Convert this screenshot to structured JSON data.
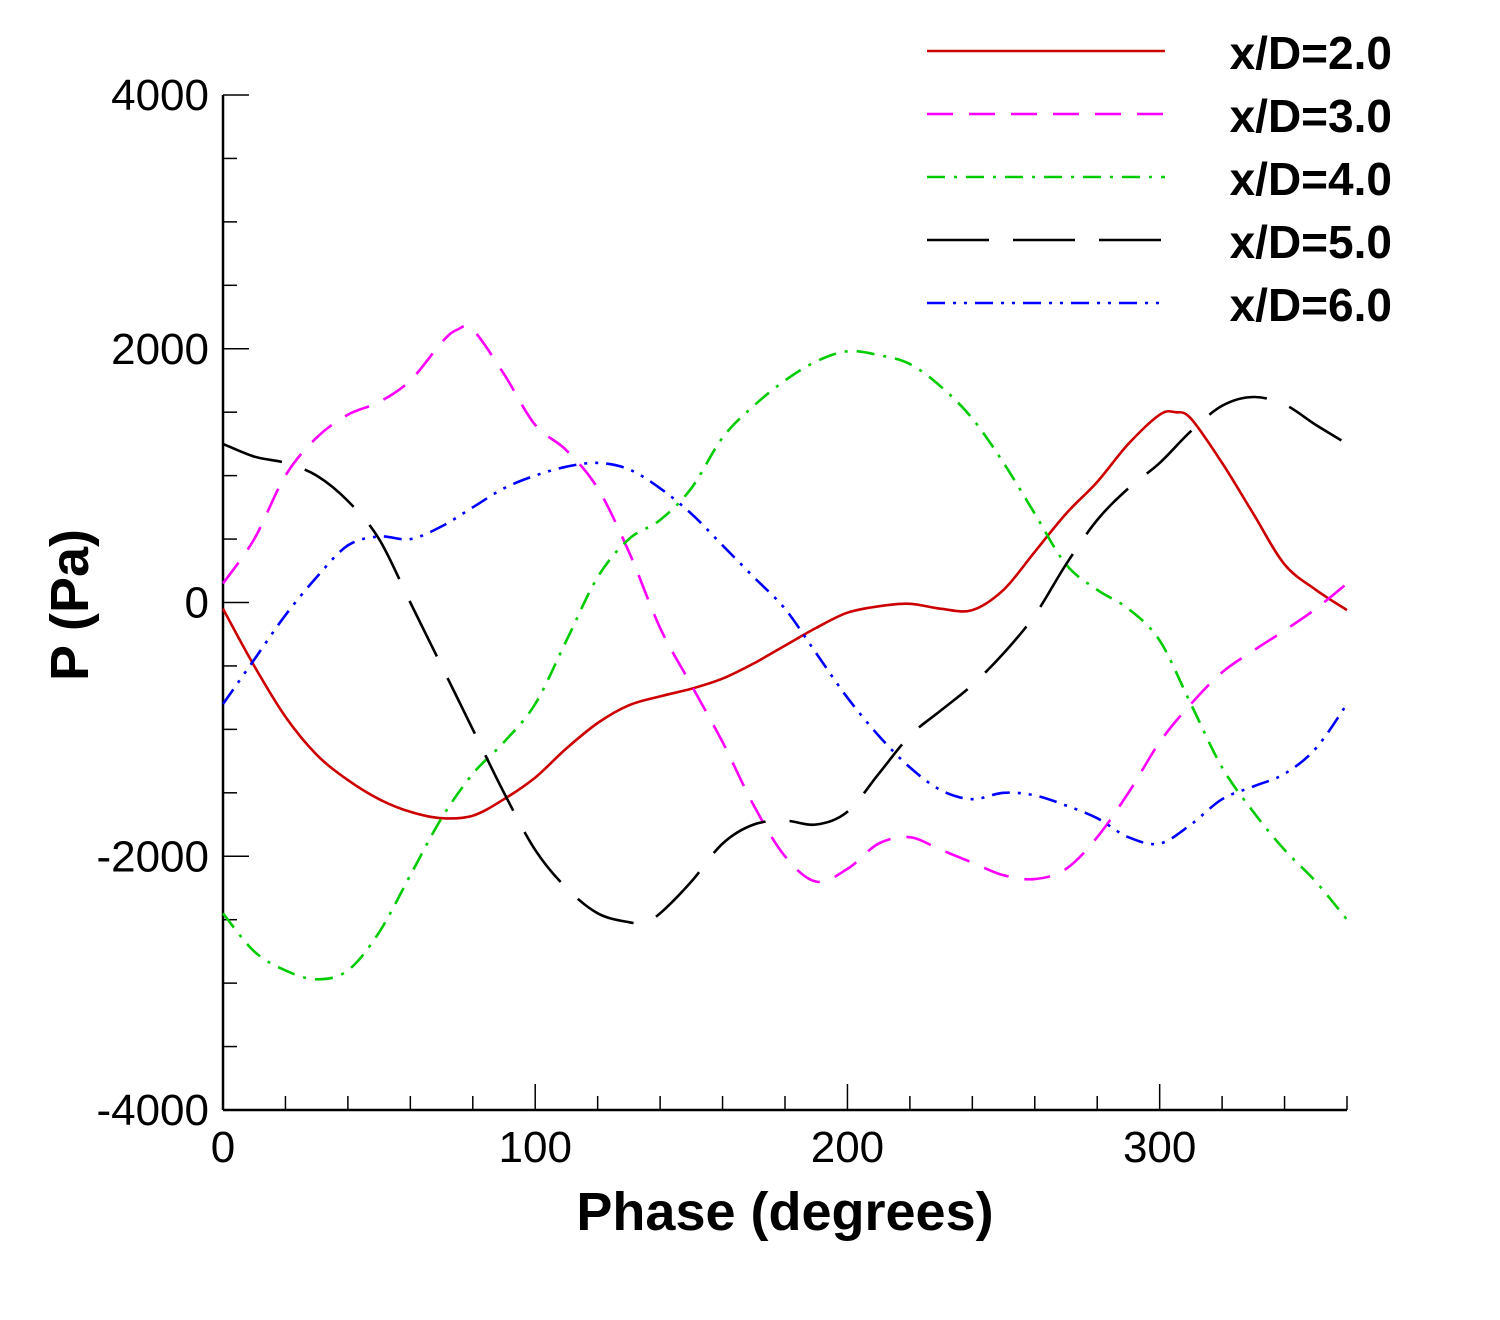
{
  "chart_data": {
    "type": "line",
    "title": "",
    "xlabel": "Phase (degrees)",
    "ylabel": "P (Pa)",
    "xlim": [
      0,
      360
    ],
    "ylim": [
      -4000,
      4000
    ],
    "x_ticks": [
      0,
      100,
      200,
      300
    ],
    "x_tick_labels": [
      "0",
      "100",
      "200",
      "300"
    ],
    "y_ticks": [
      -4000,
      -2000,
      0,
      2000,
      4000
    ],
    "y_tick_labels": [
      "-4000",
      "-2000",
      "0",
      "2000",
      "4000"
    ],
    "grid": false,
    "legend_position": "top-right",
    "series": [
      {
        "name": "x/D=2.0",
        "color": "#cc0000",
        "dash": "solid",
        "x": [
          0,
          10,
          20,
          30,
          40,
          50,
          60,
          70,
          80,
          90,
          100,
          110,
          120,
          130,
          140,
          150,
          160,
          170,
          180,
          190,
          200,
          210,
          220,
          230,
          240,
          250,
          260,
          270,
          280,
          290,
          300,
          305,
          310,
          320,
          330,
          340,
          350,
          360
        ],
        "y": [
          -50,
          -500,
          -900,
          -1200,
          -1400,
          -1550,
          -1650,
          -1700,
          -1680,
          -1550,
          -1380,
          -1150,
          -950,
          -810,
          -740,
          -680,
          -600,
          -480,
          -340,
          -200,
          -80,
          -30,
          -10,
          -50,
          -60,
          100,
          400,
          700,
          950,
          1250,
          1480,
          1500,
          1450,
          1100,
          700,
          300,
          100,
          -60
        ]
      },
      {
        "name": "x/D=3.0",
        "color": "#ff00ff",
        "dash": "dashed",
        "x": [
          0,
          10,
          20,
          30,
          40,
          50,
          60,
          70,
          75,
          80,
          90,
          100,
          110,
          120,
          130,
          140,
          150,
          160,
          170,
          180,
          190,
          200,
          210,
          220,
          230,
          240,
          250,
          260,
          270,
          280,
          290,
          300,
          310,
          320,
          330,
          340,
          350,
          360
        ],
        "y": [
          150,
          500,
          1000,
          1300,
          1480,
          1580,
          1750,
          2050,
          2150,
          2150,
          1800,
          1400,
          1200,
          900,
          400,
          -200,
          -650,
          -1100,
          -1600,
          -2000,
          -2200,
          -2100,
          -1900,
          -1850,
          -1950,
          -2050,
          -2150,
          -2180,
          -2100,
          -1850,
          -1500,
          -1100,
          -800,
          -550,
          -380,
          -220,
          -50,
          150
        ]
      },
      {
        "name": "x/D=4.0",
        "color": "#00cc00",
        "dash": "dashdot",
        "x": [
          0,
          10,
          20,
          30,
          40,
          50,
          60,
          70,
          80,
          90,
          100,
          110,
          120,
          130,
          140,
          150,
          160,
          170,
          180,
          190,
          200,
          210,
          220,
          230,
          240,
          250,
          260,
          270,
          280,
          290,
          300,
          310,
          320,
          330,
          340,
          350,
          360
        ],
        "y": [
          -2450,
          -2750,
          -2900,
          -2970,
          -2900,
          -2600,
          -2150,
          -1700,
          -1350,
          -1100,
          -800,
          -300,
          200,
          500,
          650,
          900,
          1300,
          1550,
          1750,
          1900,
          1980,
          1950,
          1880,
          1700,
          1450,
          1100,
          700,
          300,
          100,
          -50,
          -300,
          -800,
          -1300,
          -1650,
          -1950,
          -2200,
          -2500
        ]
      },
      {
        "name": "x/D=5.0",
        "color": "#000000",
        "dash": "longdash",
        "x": [
          0,
          10,
          20,
          30,
          40,
          50,
          60,
          70,
          80,
          90,
          100,
          110,
          120,
          130,
          135,
          140,
          150,
          160,
          170,
          180,
          190,
          200,
          210,
          220,
          230,
          240,
          250,
          260,
          270,
          280,
          290,
          300,
          310,
          320,
          330,
          340,
          350,
          360
        ],
        "y": [
          1250,
          1150,
          1100,
          1000,
          800,
          500,
          0,
          -500,
          -1000,
          -1500,
          -1950,
          -2250,
          -2450,
          -2520,
          -2520,
          -2450,
          -2200,
          -1900,
          -1750,
          -1720,
          -1750,
          -1650,
          -1350,
          -1050,
          -850,
          -650,
          -400,
          -100,
          300,
          650,
          900,
          1100,
          1350,
          1550,
          1620,
          1560,
          1400,
          1250
        ]
      },
      {
        "name": "x/D=6.0",
        "color": "#0000ff",
        "dash": "dashdotdot",
        "x": [
          0,
          10,
          20,
          30,
          40,
          50,
          60,
          70,
          80,
          90,
          100,
          110,
          120,
          130,
          140,
          150,
          160,
          170,
          180,
          190,
          200,
          210,
          220,
          230,
          240,
          250,
          260,
          270,
          280,
          290,
          300,
          310,
          320,
          330,
          340,
          350,
          360
        ],
        "y": [
          -800,
          -450,
          -100,
          200,
          450,
          520,
          500,
          600,
          750,
          900,
          1000,
          1070,
          1100,
          1050,
          900,
          700,
          450,
          200,
          -50,
          -400,
          -750,
          -1050,
          -1300,
          -1480,
          -1550,
          -1500,
          -1520,
          -1600,
          -1700,
          -1850,
          -1900,
          -1750,
          -1550,
          -1450,
          -1350,
          -1150,
          -800
        ]
      }
    ]
  }
}
